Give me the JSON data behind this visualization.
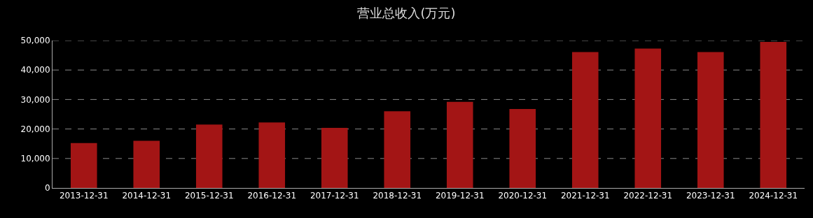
{
  "chart_data": {
    "type": "bar",
    "title": "营业总收入(万元)",
    "categories": [
      "2013-12-31",
      "2014-12-31",
      "2015-12-31",
      "2016-12-31",
      "2017-12-31",
      "2018-12-31",
      "2019-12-31",
      "2020-12-31",
      "2021-12-31",
      "2022-12-31",
      "2023-12-31",
      "2024-12-31"
    ],
    "values": [
      15200,
      16000,
      21500,
      22200,
      20400,
      26000,
      29200,
      26800,
      46100,
      47300,
      46100,
      49500
    ],
    "color": "#a31515",
    "ylim": [
      0,
      50000
    ],
    "yticks": [
      {
        "value": 0,
        "label": "0"
      },
      {
        "value": 10000,
        "label": "10,000"
      },
      {
        "value": 20000,
        "label": "20,000"
      },
      {
        "value": 30000,
        "label": "30,000"
      },
      {
        "value": 40000,
        "label": "40,000"
      },
      {
        "value": 50000,
        "label": "50,000"
      }
    ],
    "grid": "y"
  }
}
